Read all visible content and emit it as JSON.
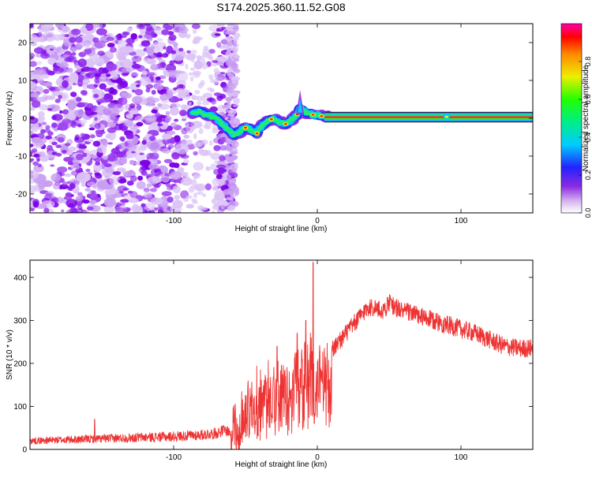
{
  "title": "S174.2025.360.11.52.G08",
  "chart_data": [
    {
      "type": "heatmap",
      "title": "S174.2025.360.11.52.G08",
      "xlabel": "Height of straight line (km)",
      "ylabel": "Frequency (Hz)",
      "xlim": [
        -200,
        150
      ],
      "ylim": [
        -25,
        25
      ],
      "x_ticks": [
        -100,
        0,
        100
      ],
      "x_tick_labels": [
        "-100",
        "0",
        "100"
      ],
      "y_ticks": [
        -20,
        -10,
        0,
        10,
        20
      ],
      "y_tick_labels": [
        "-20",
        "-10",
        "0",
        "10",
        "20"
      ],
      "colorbar": {
        "label": "Normalized spectral amplitude",
        "range": [
          0,
          1
        ],
        "ticks": [
          0,
          0.2,
          0.4,
          0.6,
          0.8
        ],
        "tick_labels": [
          "0.0",
          "0.2",
          "0.4",
          "0.6",
          "0.8"
        ]
      },
      "ridge": {
        "x": [
          -87,
          -82,
          -78,
          -74,
          -70,
          -66,
          -62,
          -58,
          -54,
          -50,
          -46,
          -42,
          -38,
          -34,
          -30,
          -26,
          -22,
          -18,
          -14,
          -12,
          -10,
          -8,
          -4,
          0,
          4,
          10,
          50,
          90,
          150
        ],
        "frequency": [
          1.5,
          1.8,
          1.0,
          0.5,
          0.0,
          -1.5,
          -3.0,
          -4.5,
          -3.5,
          -2.5,
          -3.0,
          -4.0,
          -1.5,
          -0.5,
          0.0,
          -1.0,
          -1.5,
          -0.5,
          1.0,
          3.0,
          2.0,
          1.5,
          1.0,
          0.8,
          0.5,
          0.3,
          0.3,
          0.4,
          0.3
        ]
      },
      "noise_region": {
        "x_from": -200,
        "x_to": -57
      }
    },
    {
      "type": "line",
      "xlabel": "Height of straight line (km)",
      "ylabel": "SNR (10 * v/v)",
      "xlim": [
        -200,
        150
      ],
      "ylim": [
        0,
        440
      ],
      "x_ticks": [
        -100,
        0,
        100
      ],
      "x_tick_labels": [
        "-100",
        "0",
        "100"
      ],
      "y_ticks": [
        0,
        100,
        200,
        300,
        400
      ],
      "y_tick_labels": [
        "0",
        "100",
        "200",
        "300",
        "400"
      ],
      "series": [
        {
          "name": "SNR",
          "color": "#ee3333",
          "x": [
            -200,
            -180,
            -160,
            -140,
            -120,
            -100,
            -80,
            -70,
            -65,
            -60,
            -55,
            -50,
            -45,
            -40,
            -35,
            -30,
            -25,
            -20,
            -15,
            -10,
            -5,
            -2,
            0,
            5,
            10,
            15,
            20,
            25,
            30,
            35,
            40,
            45,
            50,
            55,
            60,
            65,
            70,
            80,
            90,
            100,
            110,
            120,
            130,
            140,
            150
          ],
          "values": [
            20,
            22,
            24,
            26,
            28,
            30,
            34,
            38,
            45,
            40,
            55,
            80,
            95,
            110,
            120,
            130,
            140,
            150,
            170,
            190,
            200,
            120,
            160,
            210,
            230,
            250,
            270,
            290,
            310,
            330,
            330,
            320,
            340,
            330,
            320,
            320,
            310,
            300,
            290,
            280,
            270,
            255,
            240,
            235,
            235
          ]
        }
      ],
      "spikes": [
        {
          "x": -3,
          "value": 435
        },
        {
          "x": -8,
          "value": 300
        },
        {
          "x": -14,
          "value": 270
        },
        {
          "x": -28,
          "value": 240
        },
        {
          "x": -155,
          "value": 70
        }
      ]
    }
  ]
}
